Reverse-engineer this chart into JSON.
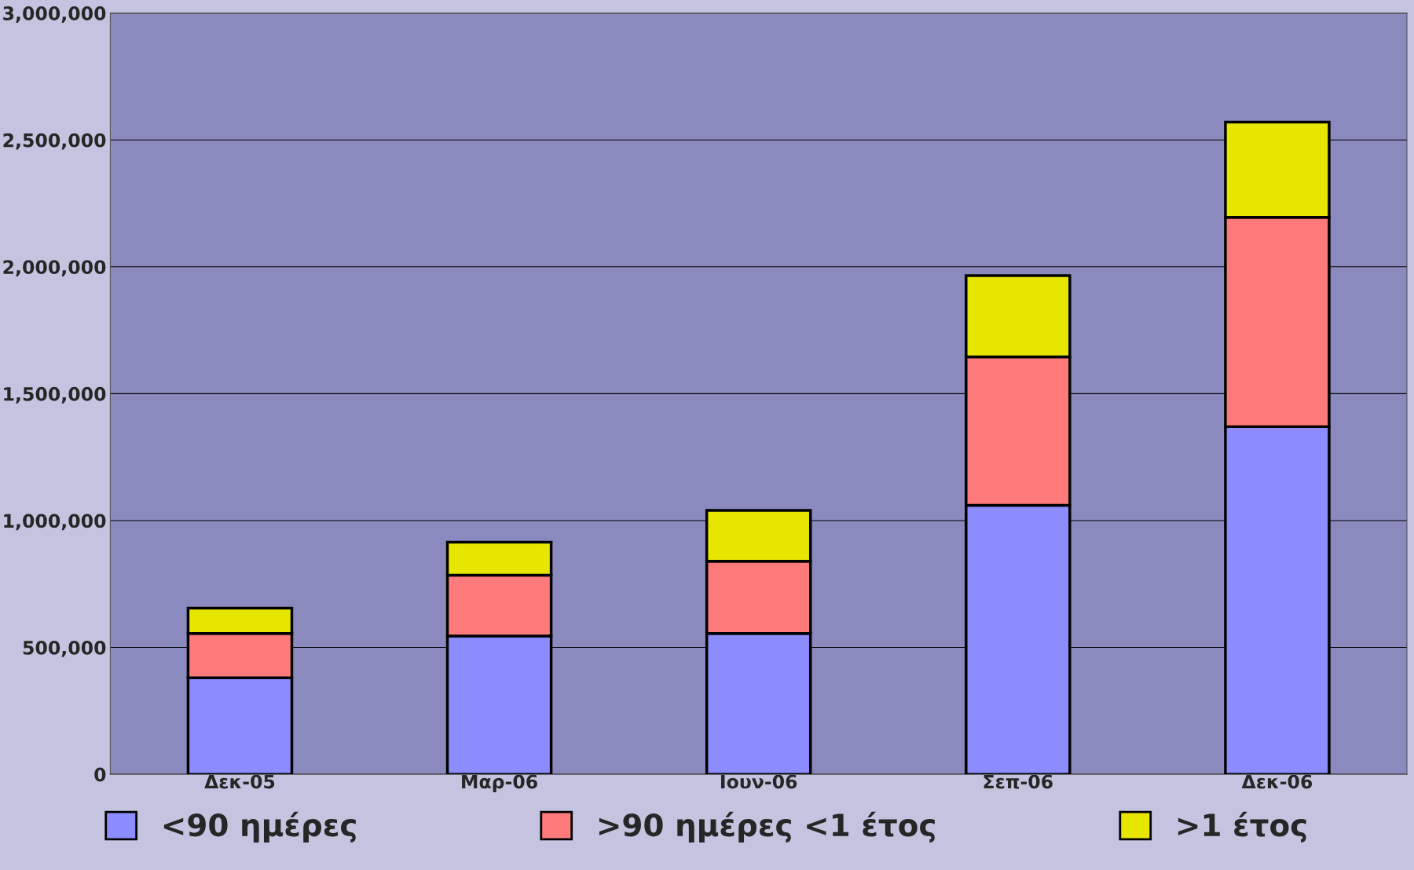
{
  "chart_data": {
    "type": "bar",
    "stacked": true,
    "categories": [
      "Δεκ-05",
      "Μαρ-06",
      "Ιουν-06",
      "Σεπ-06",
      "Δεκ-06"
    ],
    "series": [
      {
        "name": "<90 ημέρες",
        "color": "#8c8cff",
        "values": [
          380000,
          545000,
          555000,
          1060000,
          1370000
        ]
      },
      {
        "name": ">90 ημέρες <1 έτος",
        "color": "#ff7a7a",
        "values": [
          175000,
          240000,
          285000,
          585000,
          825000
        ]
      },
      {
        "name": ">1 έτος",
        "color": "#e6e600",
        "values": [
          100000,
          130000,
          200000,
          320000,
          375000
        ]
      }
    ],
    "ylim": [
      0,
      3000000
    ],
    "yticks": [
      {
        "value": 0,
        "label": "0"
      },
      {
        "value": 500000,
        "label": "500,000"
      },
      {
        "value": 1000000,
        "label": "1,000,000"
      },
      {
        "value": 1500000,
        "label": "1,500,000"
      },
      {
        "value": 2000000,
        "label": "2,000,000"
      },
      {
        "value": 2500000,
        "label": "2,500,000"
      },
      {
        "value": 3000000,
        "label": "3,000,000"
      }
    ],
    "grid": "y",
    "legend": "bottom"
  }
}
